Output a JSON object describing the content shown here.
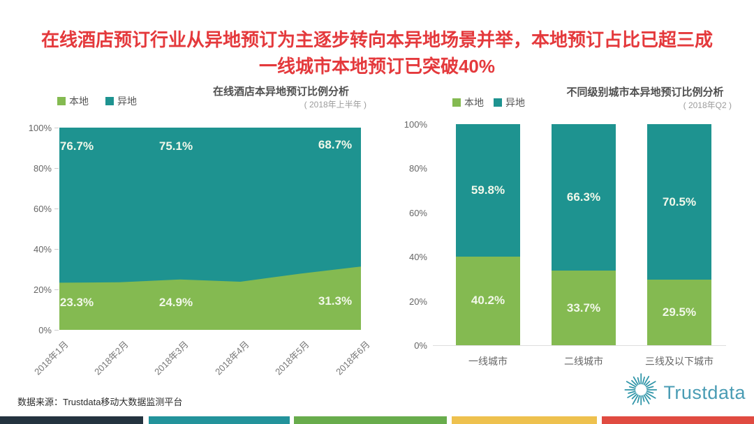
{
  "title": {
    "line1": "在线酒店预订行业从异地预订为主逐步转向本异地场景并举，本地预订占比已超三成",
    "line2": "一线城市本地预订已突破40%",
    "color": "#e4393c"
  },
  "chart_data": [
    {
      "type": "area",
      "title": "在线酒店本异地预订比例分析",
      "subtitle": "( 2018年上半年 )",
      "x": [
        "2018年1月",
        "2018年2月",
        "2018年3月",
        "2018年4月",
        "2018年5月",
        "2018年6月"
      ],
      "series": [
        {
          "name": "本地",
          "color": "#84ba51",
          "values": [
            23.3,
            23.5,
            24.9,
            23.8,
            27.8,
            31.3
          ]
        },
        {
          "name": "异地",
          "color": "#1e9390",
          "values": [
            76.7,
            76.5,
            75.1,
            76.2,
            72.2,
            68.7
          ]
        }
      ],
      "labels_remote": [
        "76.7%",
        "75.1%",
        "68.7%"
      ],
      "labels_local": [
        "23.3%",
        "24.9%",
        "31.3%"
      ],
      "ylim": [
        0,
        100
      ],
      "yticks": [
        "0%",
        "20%",
        "40%",
        "60%",
        "80%",
        "100%"
      ],
      "grid": false,
      "legend_position": "top-left"
    },
    {
      "type": "bar",
      "title": "不同级别城市本异地预订比例分析",
      "subtitle": "( 2018年Q2 )",
      "categories": [
        "一线城市",
        "二线城市",
        "三线及以下城市"
      ],
      "series": [
        {
          "name": "本地",
          "color": "#84ba51",
          "values": [
            40.2,
            33.7,
            29.5
          ]
        },
        {
          "name": "异地",
          "color": "#1e9390",
          "values": [
            59.8,
            66.3,
            70.5
          ]
        }
      ],
      "labels_remote": [
        "59.8%",
        "66.3%",
        "70.5%"
      ],
      "labels_local": [
        "40.2%",
        "33.7%",
        "29.5%"
      ],
      "ylim": [
        0,
        100
      ],
      "yticks": [
        "0%",
        "20%",
        "40%",
        "60%",
        "80%",
        "100%"
      ],
      "grid": false,
      "legend_position": "top-center"
    }
  ],
  "source": "数据来源：Trustdata移动大数据监测平台",
  "logo": {
    "text": "Trustdata",
    "icon": "sunburst-icon",
    "color": "#4a9cb4",
    "icon_color": "#2f95a8"
  },
  "footer_stripes": [
    "#24333f",
    "#23939b",
    "#68ac4c",
    "#eec14e",
    "#e04b41"
  ]
}
